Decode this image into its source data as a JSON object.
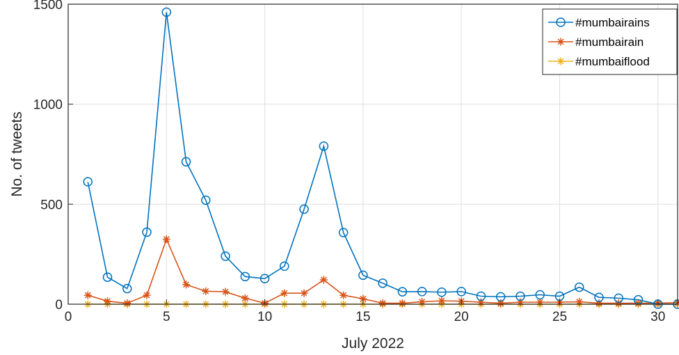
{
  "chart_data": {
    "type": "line",
    "xlabel": "July 2022",
    "ylabel": "No. of tweets",
    "xlim": [
      0,
      31
    ],
    "ylim": [
      0,
      1500
    ],
    "xticks": [
      0,
      5,
      10,
      15,
      20,
      25,
      30
    ],
    "yticks": [
      0,
      500,
      1000,
      1500
    ],
    "grid": true,
    "legend_position": "top-right",
    "x": [
      1,
      2,
      3,
      4,
      5,
      6,
      7,
      8,
      9,
      10,
      11,
      12,
      13,
      14,
      15,
      16,
      17,
      18,
      19,
      20,
      21,
      22,
      23,
      24,
      25,
      26,
      27,
      28,
      29,
      30,
      31
    ],
    "series": [
      {
        "name": "#mumbairains",
        "color": "#0072BD",
        "marker": "circle",
        "values": [
          612,
          135,
          78,
          360,
          1460,
          712,
          520,
          240,
          138,
          128,
          190,
          475,
          790,
          358,
          145,
          105,
          62,
          63,
          60,
          63,
          40,
          37,
          40,
          47,
          40,
          85,
          34,
          30,
          22,
          0,
          0
        ]
      },
      {
        "name": "#mumbairain",
        "color": "#D95319",
        "marker": "asterisk",
        "values": [
          45,
          15,
          5,
          45,
          325,
          98,
          65,
          62,
          30,
          5,
          55,
          55,
          122,
          45,
          27,
          5,
          5,
          12,
          17,
          15,
          10,
          5,
          10,
          10,
          10,
          12,
          5,
          5,
          5,
          5,
          8
        ]
      },
      {
        "name": "#mumbaiflood",
        "color": "#EDB120",
        "marker": "asterisk",
        "values": [
          0,
          0,
          0,
          0,
          0,
          0,
          0,
          0,
          0,
          0,
          0,
          0,
          0,
          0,
          0,
          0,
          0,
          0,
          0,
          0,
          0,
          0,
          0,
          0,
          0,
          0,
          0,
          0,
          0,
          0,
          0
        ]
      }
    ]
  }
}
